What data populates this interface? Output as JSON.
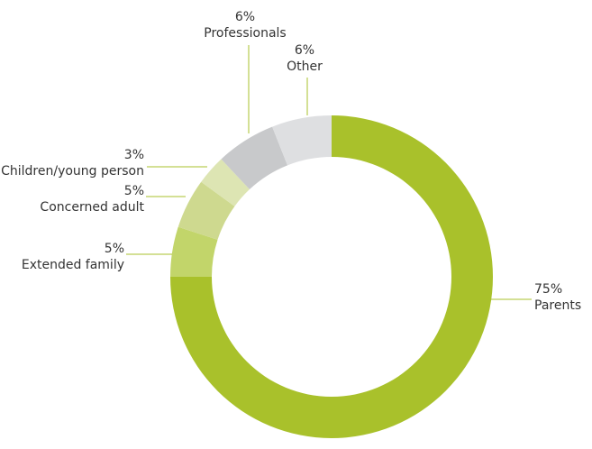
{
  "chart_data": {
    "type": "pie",
    "donut": true,
    "title": "",
    "slices": [
      {
        "name": "Parents",
        "value": 75,
        "percent_label": "75%",
        "color": "#a9c12b"
      },
      {
        "name": "Extended family",
        "value": 5,
        "percent_label": "5%",
        "color": "#c2d56a"
      },
      {
        "name": "Concerned adult",
        "value": 5,
        "percent_label": "5%",
        "color": "#ced98f"
      },
      {
        "name": "Children/young person",
        "value": 3,
        "percent_label": "3%",
        "color": "#dde5b3"
      },
      {
        "name": "Professionals",
        "value": 6,
        "percent_label": "6%",
        "color": "#c8c9cb"
      },
      {
        "name": "Other",
        "value": 6,
        "percent_label": "6%",
        "color": "#dedfe1"
      }
    ],
    "leader_line_color": "#a9c12b"
  }
}
